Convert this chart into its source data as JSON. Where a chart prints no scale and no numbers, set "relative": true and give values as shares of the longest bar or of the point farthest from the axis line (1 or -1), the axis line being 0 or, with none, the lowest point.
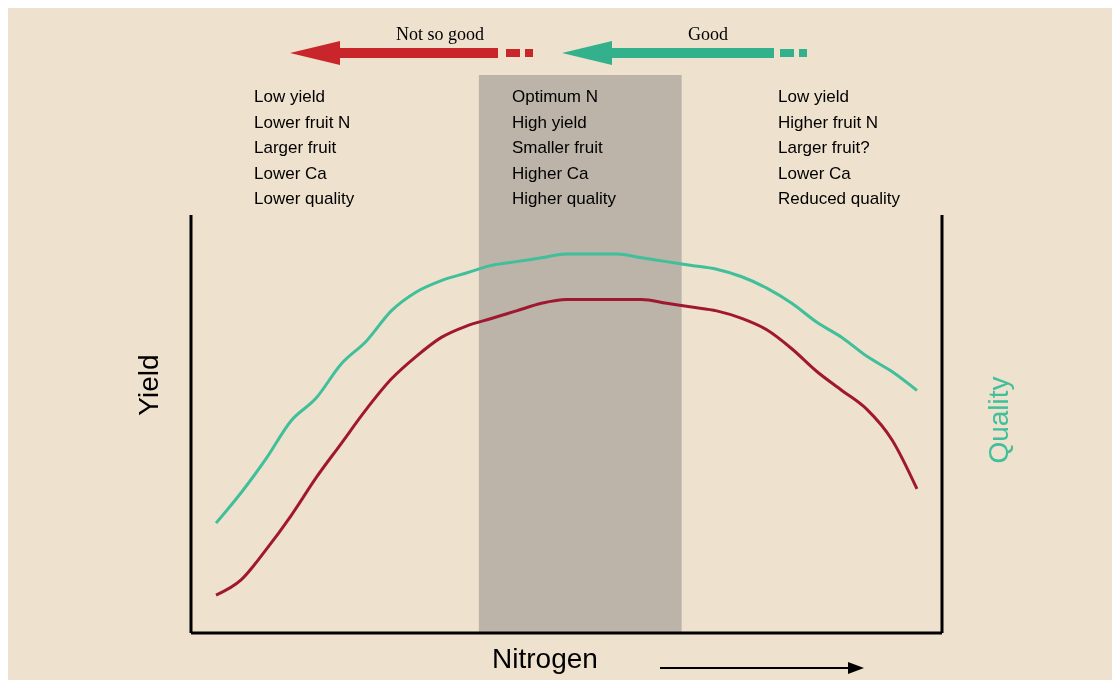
{
  "chart_data": {
    "type": "line",
    "relative": true,
    "xlabel": "Nitrogen",
    "ylabel": "Yield",
    "y2label": "Quality",
    "categories": [
      null,
      null,
      null,
      null,
      null,
      null,
      null,
      null,
      null,
      null,
      null,
      null,
      null,
      null,
      null,
      null,
      null,
      null,
      null,
      null,
      null,
      null,
      null,
      null,
      null,
      null,
      null,
      null,
      null,
      null,
      null
    ],
    "series": [
      {
        "color": "#a01830",
        "values": [
          null,
          0.1,
          0.14,
          0.22,
          0.31,
          0.41,
          0.5,
          0.59,
          0.67,
          0.73,
          0.78,
          0.81,
          0.83,
          0.85,
          0.87,
          0.88,
          0.88,
          0.88,
          0.88,
          0.87,
          0.86,
          0.85,
          0.83,
          0.8,
          0.75,
          0.69,
          0.64,
          0.59,
          0.51,
          0.38,
          null
        ]
      },
      {
        "color": "#3fbf9a",
        "values": [
          null,
          0.29,
          0.37,
          0.46,
          0.56,
          0.62,
          0.71,
          0.77,
          0.85,
          0.9,
          0.93,
          0.95,
          0.97,
          0.98,
          0.99,
          1.0,
          1.0,
          1.0,
          0.99,
          0.98,
          0.97,
          0.96,
          0.94,
          0.91,
          0.87,
          0.82,
          0.78,
          0.73,
          0.69,
          0.64,
          null
        ]
      }
    ],
    "annotations": [
      "Not so good",
      "Good",
      "Low yield\nLower fruit N\nLarger fruit\nLower Ca\nLower quality",
      "Optimum N\nHigh yield\nSmaller fruit\nHigher Ca\nHigher quality",
      "Low yield\nHigher fruit N\nLarger fruit?\nLower Ca\nReduced quality"
    ],
    "grid": false,
    "legend": false,
    "marker": "none",
    "line_style": "solid"
  }
}
